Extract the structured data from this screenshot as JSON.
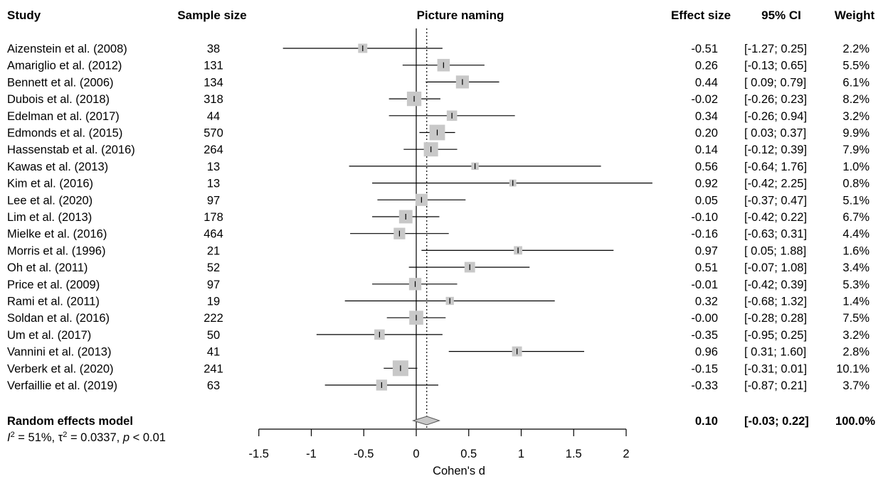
{
  "chart_data": {
    "type": "forest",
    "title": "Picture naming",
    "columns": {
      "study": "Study",
      "sample_size": "Sample size",
      "effect_size": "Effect size",
      "ci": "95% CI",
      "weight": "Weight"
    },
    "xlabel": "Cohen's d",
    "xlim": [
      -1.5,
      2
    ],
    "xticks": [
      "-1.5",
      "-1",
      "-0.5",
      "0",
      "0.5",
      "1",
      "1.5",
      "2"
    ],
    "reference_line": 0,
    "summary_line": 0.1,
    "studies": [
      {
        "name": "Aizenstein et al. (2008)",
        "n": "38",
        "es": -0.51,
        "lo": -1.27,
        "hi": 0.25,
        "es_text": "-0.51",
        "ci_text": "[-1.27; 0.25]",
        "weight_text": "2.2%",
        "weight": 2.2
      },
      {
        "name": "Amariglio et al. (2012)",
        "n": "131",
        "es": 0.26,
        "lo": -0.13,
        "hi": 0.65,
        "es_text": "0.26",
        "ci_text": "[-0.13; 0.65]",
        "weight_text": "5.5%",
        "weight": 5.5
      },
      {
        "name": "Bennett et al. (2006)",
        "n": "134",
        "es": 0.44,
        "lo": 0.09,
        "hi": 0.79,
        "es_text": "0.44",
        "ci_text": "[ 0.09; 0.79]",
        "weight_text": "6.1%",
        "weight": 6.1
      },
      {
        "name": "Dubois et al. (2018)",
        "n": "318",
        "es": -0.02,
        "lo": -0.26,
        "hi": 0.23,
        "es_text": "-0.02",
        "ci_text": "[-0.26; 0.23]",
        "weight_text": "8.2%",
        "weight": 8.2
      },
      {
        "name": "Edelman et al. (2017)",
        "n": "44",
        "es": 0.34,
        "lo": -0.26,
        "hi": 0.94,
        "es_text": "0.34",
        "ci_text": "[-0.26; 0.94]",
        "weight_text": "3.2%",
        "weight": 3.2
      },
      {
        "name": "Edmonds et al. (2015)",
        "n": "570",
        "es": 0.2,
        "lo": 0.03,
        "hi": 0.37,
        "es_text": "0.20",
        "ci_text": "[ 0.03; 0.37]",
        "weight_text": "9.9%",
        "weight": 9.9
      },
      {
        "name": "Hassenstab et al. (2016)",
        "n": "264",
        "es": 0.14,
        "lo": -0.12,
        "hi": 0.39,
        "es_text": "0.14",
        "ci_text": "[-0.12; 0.39]",
        "weight_text": "7.9%",
        "weight": 7.9
      },
      {
        "name": "Kawas et al. (2013)",
        "n": "13",
        "es": 0.56,
        "lo": -0.64,
        "hi": 1.76,
        "es_text": "0.56",
        "ci_text": "[-0.64; 1.76]",
        "weight_text": "1.0%",
        "weight": 1.0
      },
      {
        "name": "Kim et al. (2016)",
        "n": "13",
        "es": 0.92,
        "lo": -0.42,
        "hi": 2.25,
        "es_text": "0.92",
        "ci_text": "[-0.42; 2.25]",
        "weight_text": "0.8%",
        "weight": 0.8
      },
      {
        "name": "Lee et al. (2020)",
        "n": "97",
        "es": 0.05,
        "lo": -0.37,
        "hi": 0.47,
        "es_text": "0.05",
        "ci_text": "[-0.37; 0.47]",
        "weight_text": "5.1%",
        "weight": 5.1
      },
      {
        "name": "Lim et al. (2013)",
        "n": "178",
        "es": -0.1,
        "lo": -0.42,
        "hi": 0.22,
        "es_text": "-0.10",
        "ci_text": "[-0.42; 0.22]",
        "weight_text": "6.7%",
        "weight": 6.7
      },
      {
        "name": "Mielke et al. (2016)",
        "n": "464",
        "es": -0.16,
        "lo": -0.63,
        "hi": 0.31,
        "es_text": "-0.16",
        "ci_text": "[-0.63; 0.31]",
        "weight_text": "4.4%",
        "weight": 4.4
      },
      {
        "name": "Morris et al. (1996)",
        "n": "21",
        "es": 0.97,
        "lo": 0.05,
        "hi": 1.88,
        "es_text": "0.97",
        "ci_text": "[ 0.05; 1.88]",
        "weight_text": "1.6%",
        "weight": 1.6
      },
      {
        "name": "Oh et al. (2011)",
        "n": "52",
        "es": 0.51,
        "lo": -0.07,
        "hi": 1.08,
        "es_text": "0.51",
        "ci_text": "[-0.07; 1.08]",
        "weight_text": "3.4%",
        "weight": 3.4
      },
      {
        "name": "Price et al. (2009)",
        "n": "97",
        "es": -0.01,
        "lo": -0.42,
        "hi": 0.39,
        "es_text": "-0.01",
        "ci_text": "[-0.42; 0.39]",
        "weight_text": "5.3%",
        "weight": 5.3
      },
      {
        "name": "Rami et al. (2011)",
        "n": "19",
        "es": 0.32,
        "lo": -0.68,
        "hi": 1.32,
        "es_text": "0.32",
        "ci_text": "[-0.68; 1.32]",
        "weight_text": "1.4%",
        "weight": 1.4
      },
      {
        "name": "Soldan et al. (2016)",
        "n": "222",
        "es": -0.0,
        "lo": -0.28,
        "hi": 0.28,
        "es_text": "-0.00",
        "ci_text": "[-0.28; 0.28]",
        "weight_text": "7.5%",
        "weight": 7.5
      },
      {
        "name": "Um et al. (2017)",
        "n": "50",
        "es": -0.35,
        "lo": -0.95,
        "hi": 0.25,
        "es_text": "-0.35",
        "ci_text": "[-0.95; 0.25]",
        "weight_text": "3.2%",
        "weight": 3.2
      },
      {
        "name": "Vannini et al. (2013)",
        "n": "41",
        "es": 0.96,
        "lo": 0.31,
        "hi": 1.6,
        "es_text": "0.96",
        "ci_text": "[ 0.31; 1.60]",
        "weight_text": "2.8%",
        "weight": 2.8
      },
      {
        "name": "Verberk et al. (2020)",
        "n": "241",
        "es": -0.15,
        "lo": -0.31,
        "hi": 0.01,
        "es_text": "-0.15",
        "ci_text": "[-0.31; 0.01]",
        "weight_text": "10.1%",
        "weight": 10.1
      },
      {
        "name": "Verfaillie et al. (2019)",
        "n": "63",
        "es": -0.33,
        "lo": -0.87,
        "hi": 0.21,
        "es_text": "-0.33",
        "ci_text": "[-0.87; 0.21]",
        "weight_text": "3.7%",
        "weight": 3.7
      }
    ],
    "summary": {
      "name": "Random effects model",
      "es": 0.1,
      "lo": -0.03,
      "hi": 0.22,
      "es_text": "0.10",
      "ci_text": "[-0.03; 0.22]",
      "weight_text": "100.0%"
    },
    "heterogeneity": {
      "I2_label": "I",
      "I2_sup": "2",
      "I2_value": " = 51%, ",
      "tau_label": "τ",
      "tau_sup": "2",
      "tau_value": " = 0.0337, ",
      "p_label": "p",
      "p_value": " < 0.01"
    },
    "colors": {
      "square": "#c8c8c8",
      "diamond": "#c8c8c8",
      "line": "#000000"
    }
  }
}
